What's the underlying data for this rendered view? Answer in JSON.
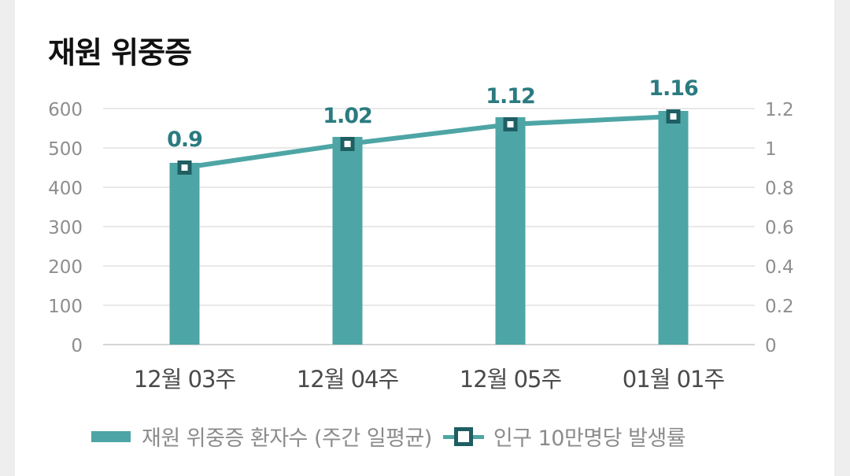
{
  "chart_data": {
    "type": "bar",
    "title": "재원 위중증",
    "categories": [
      "12월 03주",
      "12월 04주",
      "12월 05주",
      "01월 01주"
    ],
    "series": [
      {
        "name": "재원 위중증 환자수 (주간 일평균)",
        "type": "bar",
        "axis": "left",
        "values": [
          462,
          528,
          578,
          594
        ],
        "color": "#4ea5a5"
      },
      {
        "name": "인구 10만명당 발생률",
        "type": "line",
        "axis": "right",
        "values": [
          0.9,
          1.02,
          1.12,
          1.16
        ],
        "labels": [
          "0.9",
          "1.02",
          "1.12",
          "1.16"
        ],
        "color": "#4ea5a5",
        "marker_color": "#1f5e62"
      }
    ],
    "y_left": {
      "min": 0,
      "max": 600,
      "ticks": [
        "0",
        "100",
        "200",
        "300",
        "400",
        "500",
        "600"
      ]
    },
    "y_right": {
      "min": 0,
      "max": 1.2,
      "ticks": [
        "0",
        "0.2",
        "0.4",
        "0.6",
        "0.8",
        "1",
        "1.2"
      ]
    },
    "grid": true,
    "legend_position": "bottom",
    "label_color": "#2a7b80"
  }
}
